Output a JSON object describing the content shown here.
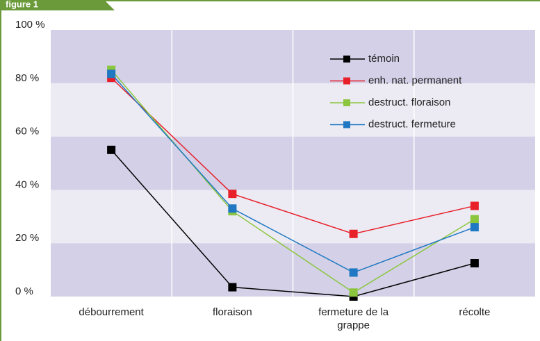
{
  "chart_data": {
    "type": "line",
    "title": "figure 1",
    "categories": [
      "débourrement",
      "floraison",
      "fermeture de la grappe",
      "récolte"
    ],
    "series": [
      {
        "name": "témoin",
        "color": "#000000",
        "values": [
          55,
          3.5,
          0,
          12.5
        ]
      },
      {
        "name": "enh. nat. permanent",
        "color": "#e8202a",
        "values": [
          82,
          38.5,
          23.5,
          34
        ]
      },
      {
        "name": "destruct. floraison",
        "color": "#8cc63f",
        "values": [
          85,
          32,
          1.5,
          29
        ]
      },
      {
        "name": "destruct. fermeture",
        "color": "#1f78c1",
        "values": [
          83.5,
          33,
          9,
          26
        ]
      }
    ],
    "ylim": [
      0,
      100
    ],
    "yticks": [
      {
        "value": 0,
        "label": "0 %"
      },
      {
        "value": 20,
        "label": "20 %"
      },
      {
        "value": 40,
        "label": "40 %"
      },
      {
        "value": 60,
        "label": "60 %"
      },
      {
        "value": 80,
        "label": "80 %"
      },
      {
        "value": 100,
        "label": "100 %"
      }
    ],
    "bands": [
      "#d3d0e7",
      "#ecebf4"
    ],
    "legend": "upper right"
  }
}
